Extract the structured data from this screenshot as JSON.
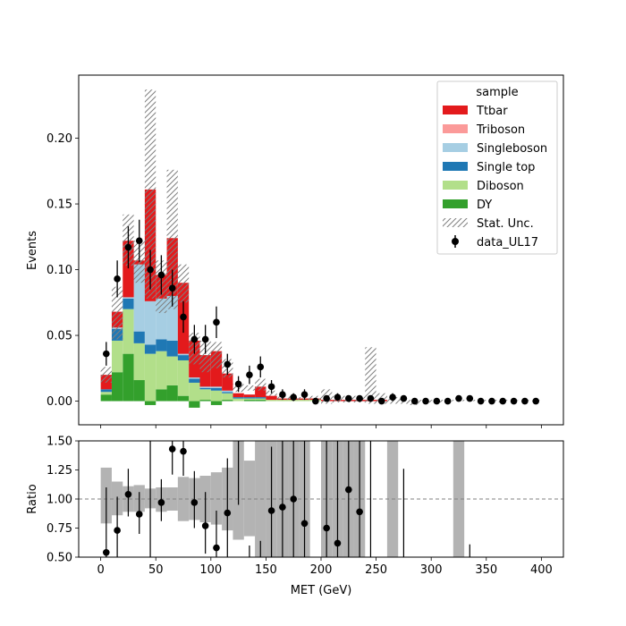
{
  "chart_data": [
    {
      "type": "bar",
      "stacked": true,
      "xlabel": "",
      "ylabel": "Events",
      "xlim": [
        -20,
        420
      ],
      "ylim": [
        -0.018,
        0.248
      ],
      "xticks": [
        0,
        50,
        100,
        150,
        200,
        250,
        300,
        350,
        400
      ],
      "yticks": [
        0.0,
        0.05,
        0.1,
        0.15,
        0.2
      ],
      "ytick_labels": [
        "0.00",
        "0.05",
        "0.10",
        "0.15",
        "0.20"
      ],
      "bin_edges": [
        0,
        10,
        20,
        30,
        40,
        50,
        60,
        70,
        80,
        90,
        100,
        110,
        120,
        130,
        140,
        150,
        160,
        170,
        180,
        190,
        200,
        210,
        220,
        230,
        240,
        250,
        260,
        270,
        280,
        290,
        300,
        310,
        320,
        330,
        340,
        350,
        360,
        370,
        380,
        390,
        400
      ],
      "legend": {
        "title": "sample",
        "position": "upper-right"
      },
      "series": [
        {
          "name": "DY",
          "color": "#33a02c",
          "values": [
            0.005,
            0.022,
            0.036,
            0.016,
            -0.003,
            0.009,
            0.012,
            0.004,
            -0.005,
            0.001,
            -0.003,
            0.001,
            0,
            0.001,
            0.001,
            0,
            0,
            0,
            0,
            0,
            0,
            0,
            0,
            0,
            0,
            0,
            0,
            0,
            0,
            0,
            0,
            0,
            0,
            0,
            0,
            0,
            0,
            0,
            0,
            0
          ]
        },
        {
          "name": "Diboson",
          "color": "#b2df8a",
          "values": [
            0.002,
            0.024,
            0.034,
            0.028,
            0.036,
            0.029,
            0.022,
            0.027,
            0.014,
            0.008,
            0.008,
            0.005,
            0.002,
            0.001,
            0.001,
            0.001,
            0.001,
            0.001,
            0.001,
            0.001,
            0,
            0,
            0,
            0,
            0,
            0,
            0,
            0,
            0,
            0,
            0,
            0,
            0,
            0,
            0,
            0,
            0,
            0,
            0,
            0
          ]
        },
        {
          "name": "Single top",
          "color": "#1f78b4",
          "values": [
            0.002,
            0.009,
            0.008,
            0.009,
            0.007,
            0.009,
            0.012,
            0.004,
            0.003,
            0.001,
            0.002,
            0.001,
            0.001,
            0.001,
            0.001,
            0,
            0,
            0,
            0,
            0,
            0,
            0,
            0,
            0,
            0,
            0,
            0,
            0,
            0,
            0,
            0,
            0,
            0,
            0,
            0,
            0,
            0,
            0,
            0,
            0
          ]
        },
        {
          "name": "Singleboson",
          "color": "#a6cee3",
          "values": [
            0,
            0.001,
            0.001,
            0.051,
            0.033,
            0.031,
            0.034,
            0.001,
            0.001,
            0.001,
            0.001,
            0.001,
            0,
            0,
            0,
            0,
            0,
            0,
            0,
            0,
            0,
            0,
            0,
            0,
            0,
            0,
            0,
            0,
            0,
            0,
            0,
            0,
            0,
            0,
            0,
            0,
            0,
            0,
            0,
            0
          ]
        },
        {
          "name": "Triboson",
          "color": "#fb9a99",
          "values": [
            0,
            0,
            0,
            0,
            0,
            0,
            0,
            0,
            0,
            0,
            0,
            0,
            0,
            0,
            0,
            0,
            0,
            0,
            0,
            0,
            0,
            0,
            0,
            0,
            0,
            0,
            0,
            0,
            0,
            0,
            0,
            0,
            0,
            0,
            0,
            0,
            0,
            0,
            0,
            0
          ]
        },
        {
          "name": "Ttbar",
          "color": "#e31a1c",
          "values": [
            0.011,
            0.012,
            0.043,
            0.003,
            0.085,
            0.018,
            0.044,
            0.054,
            0.028,
            0.024,
            0.027,
            0.013,
            0.003,
            0.002,
            0.008,
            0.003,
            0.001,
            0.001,
            0.001,
            0.001,
            0.001,
            0.001,
            0.001,
            0.001,
            0.001,
            0.001,
            0,
            0,
            0,
            0,
            0,
            0,
            0,
            0,
            0,
            0,
            0,
            0,
            0,
            0
          ]
        }
      ],
      "stat_unc": {
        "name": "Stat. Unc.",
        "hatch": "////",
        "up": [
          0.026,
          0.087,
          0.142,
          0.122,
          0.237,
          0.107,
          0.176,
          0.104,
          0.052,
          0.046,
          0.045,
          0.032,
          0.013,
          0.012,
          0.017,
          0.008,
          0.004,
          0.004,
          0.003,
          0.004,
          0.009,
          0.004,
          0.004,
          0.004,
          0.041,
          0.006,
          0.003,
          0.002,
          0.001,
          0.001,
          0.001,
          0.001,
          0.001,
          0.001,
          0.001,
          0.001,
          0.001,
          0.001,
          0.001,
          0.001
        ],
        "down": [
          0.014,
          0.047,
          0.103,
          0.09,
          0.078,
          0.067,
          0.07,
          0.075,
          0.028,
          0.022,
          0.025,
          0.018,
          0.007,
          0.008,
          0.008,
          0.004,
          0.001,
          0.001,
          0.001,
          0.001,
          -0.002,
          -0.001,
          -0.001,
          -0.001,
          -0.002,
          -0.002,
          -0.002,
          -0.002,
          -0.003,
          -0.001,
          -0.001,
          0,
          0,
          0,
          0,
          0,
          -0.001,
          0.001,
          0,
          0
        ]
      },
      "data": {
        "name": "data_UL17",
        "x": [
          5,
          15,
          25,
          35,
          45,
          55,
          65,
          75,
          85,
          95,
          105,
          115,
          125,
          135,
          145,
          155,
          165,
          175,
          185,
          195,
          205,
          215,
          225,
          235,
          245,
          255,
          265,
          275,
          285,
          295,
          305,
          315,
          325,
          335,
          345,
          355,
          365,
          375,
          385,
          395
        ],
        "y": [
          0.036,
          0.093,
          0.117,
          0.122,
          0.1,
          0.096,
          0.086,
          0.064,
          0.047,
          0.047,
          0.06,
          0.028,
          0.013,
          0.02,
          0.026,
          0.011,
          0.005,
          0.003,
          0.005,
          0.0,
          0.002,
          0.003,
          0.002,
          0.002,
          0.002,
          0.0,
          0.003,
          0.002,
          0.0,
          0.0,
          0.0,
          0.0,
          0.002,
          0.002,
          0.0,
          0.0,
          0.0,
          0.0,
          0.0,
          0.0
        ],
        "yerr": [
          0.009,
          0.014,
          0.016,
          0.016,
          0.015,
          0.015,
          0.014,
          0.012,
          0.011,
          0.011,
          0.012,
          0.008,
          0.006,
          0.007,
          0.008,
          0.005,
          0.004,
          0.003,
          0.004,
          0.001,
          0.002,
          0.003,
          0.002,
          0.002,
          0.002,
          0.001,
          0.003,
          0.002,
          0.001,
          0.001,
          0.001,
          0.001,
          0.002,
          0.002,
          0.001,
          0.001,
          0.001,
          0.001,
          0.001,
          0.001
        ]
      }
    },
    {
      "type": "scatter",
      "xlabel": "MET (GeV)",
      "ylabel": "Ratio",
      "xlim": [
        -20,
        420
      ],
      "ylim": [
        0.5,
        1.5
      ],
      "xticks": [
        0,
        50,
        100,
        150,
        200,
        250,
        300,
        350,
        400
      ],
      "xtick_labels": [
        "0",
        "50",
        "100",
        "150",
        "200",
        "250",
        "300",
        "350",
        "400"
      ],
      "yticks": [
        0.5,
        0.75,
        1.0,
        1.25,
        1.5
      ],
      "ytick_labels": [
        "0.50",
        "0.75",
        "1.00",
        "1.25",
        "1.50"
      ],
      "reference_line": 1.0,
      "unc_band": {
        "color": "#b3b3b3",
        "low": [
          0.79,
          0.86,
          0.89,
          0.89,
          0.92,
          0.89,
          0.9,
          0.81,
          0.82,
          0.8,
          0.78,
          0.73,
          0.65,
          0.68,
          0.5,
          0.5,
          0.5,
          0.5,
          0.5,
          0.5,
          0.5,
          0.5,
          0.5,
          0.5,
          0.5,
          0.5,
          0.5,
          0.5,
          0.5,
          0.5,
          0.5,
          0.5,
          0.5,
          0.5,
          0.5,
          0.5,
          0.5,
          0.5,
          0.5,
          0.5
        ],
        "high": [
          1.27,
          1.15,
          1.11,
          1.12,
          1.09,
          1.1,
          1.1,
          1.19,
          1.18,
          1.2,
          1.23,
          1.27,
          1.5,
          1.33,
          1.5,
          1.5,
          1.5,
          1.5,
          1.5,
          1.5,
          1.5,
          1.5,
          1.5,
          1.5,
          1.5,
          1.5,
          1.5,
          1.5,
          1.5,
          1.5,
          1.5,
          1.5,
          1.5,
          1.5,
          1.5,
          1.5,
          1.5,
          1.5,
          1.5,
          1.5
        ],
        "visible": [
          true,
          true,
          true,
          true,
          true,
          true,
          true,
          true,
          true,
          true,
          true,
          true,
          true,
          true,
          true,
          true,
          true,
          true,
          true,
          false,
          true,
          true,
          true,
          true,
          false,
          false,
          true,
          false,
          false,
          false,
          false,
          false,
          true,
          false,
          false,
          false,
          false,
          false,
          false,
          false
        ]
      },
      "points": {
        "x": [
          5,
          15,
          25,
          35,
          45,
          55,
          65,
          75,
          85,
          95,
          105,
          115,
          125,
          135,
          145,
          155,
          165,
          175,
          185,
          195,
          205,
          215,
          225,
          235,
          245,
          255,
          265,
          275,
          285,
          295,
          305,
          315,
          325,
          335,
          345,
          355,
          365,
          375,
          385,
          395
        ],
        "y": [
          0.54,
          0.73,
          1.04,
          0.87,
          null,
          0.97,
          1.43,
          1.41,
          0.97,
          0.77,
          0.58,
          0.88,
          null,
          null,
          null,
          0.9,
          0.93,
          1.0,
          0.79,
          null,
          0.75,
          0.62,
          1.08,
          0.89,
          null,
          null,
          null,
          null,
          null,
          null,
          null,
          null,
          null,
          null,
          null,
          null,
          null,
          null,
          null,
          null
        ],
        "yerr_low": [
          0.44,
          0.23,
          0.19,
          0.17,
          null,
          0.16,
          0.22,
          0.21,
          0.22,
          0.24,
          0.26,
          0.42,
          null,
          null,
          null,
          0.5,
          0.55,
          0.6,
          0.7,
          null,
          0.8,
          0.62,
          0.92,
          0.95,
          null,
          null,
          null,
          null,
          null,
          null,
          null,
          null,
          null,
          null,
          null,
          null,
          null,
          null,
          null,
          null
        ],
        "yerr_high": [
          0.56,
          0.29,
          0.22,
          0.19,
          null,
          0.2,
          0.25,
          0.24,
          0.27,
          0.29,
          0.32,
          0.47,
          null,
          null,
          null,
          0.55,
          0.6,
          0.7,
          0.8,
          null,
          0.95,
          1.0,
          1.2,
          1.3,
          null,
          null,
          null,
          null,
          null,
          null,
          null,
          null,
          null,
          null,
          null,
          null,
          null,
          null,
          null,
          null
        ],
        "extra_bars": [
          {
            "x": 45,
            "low": 0.5,
            "high": 1.5
          },
          {
            "x": 125,
            "low": 0.95,
            "high": 1.5
          },
          {
            "x": 135,
            "low": 0.5,
            "high": 0.6
          },
          {
            "x": 145,
            "low": 0.5,
            "high": 0.64
          },
          {
            "x": 245,
            "low": 0.5,
            "high": 1.5
          },
          {
            "x": 275,
            "low": 0.5,
            "high": 1.26
          },
          {
            "x": 335,
            "low": 0.5,
            "high": 0.61
          }
        ]
      }
    }
  ]
}
